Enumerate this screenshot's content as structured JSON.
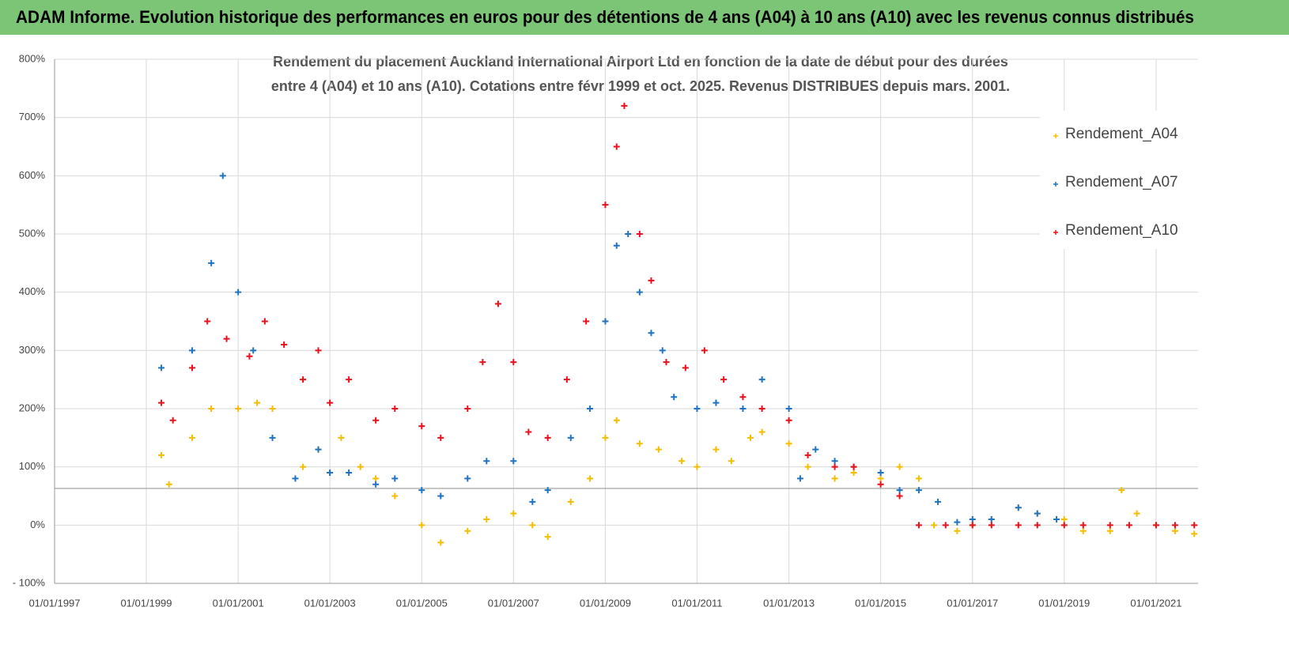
{
  "chart_data": {
    "type": "scatter",
    "title": "ADAM Informe. Evolution historique des performances en euros pour des détentions de 4 ans (A04) à 10 ans (A10) avec les revenus connus distribués",
    "subtitle": [
      "Rendement du placement Auckland International Airport Ltd en fonction de la date de début pour des durées",
      "entre 4 (A04) et 10 ans (A10).  Cotations entre févr 1999 et oct. 2025. Revenus DISTRIBUES depuis mars. 2001."
    ],
    "xlim": [
      "1997-01-01",
      "2021-12-01"
    ],
    "xticks": [
      {
        "value": "1997-01-01",
        "label": "01/01/1997"
      },
      {
        "value": "1999-01-01",
        "label": "01/01/1999"
      },
      {
        "value": "2001-01-01",
        "label": "01/01/2001"
      },
      {
        "value": "2003-01-01",
        "label": "01/01/2003"
      },
      {
        "value": "2005-01-01",
        "label": "01/01/2005"
      },
      {
        "value": "2007-01-01",
        "label": "01/01/2007"
      },
      {
        "value": "2009-01-01",
        "label": "01/01/2009"
      },
      {
        "value": "2011-01-01",
        "label": "01/01/2011"
      },
      {
        "value": "2013-01-01",
        "label": "01/01/2013"
      },
      {
        "value": "2015-01-01",
        "label": "01/01/2015"
      },
      {
        "value": "2017-01-01",
        "label": "01/01/2017"
      },
      {
        "value": "2019-01-01",
        "label": "01/01/2019"
      },
      {
        "value": "2021-01-01",
        "label": "01/01/2021"
      }
    ],
    "ylim": [
      -100,
      800
    ],
    "yticks": [
      {
        "value": -100,
        "label": "- 100%"
      },
      {
        "value": 0,
        "label": "0%"
      },
      {
        "value": 100,
        "label": "100%"
      },
      {
        "value": 200,
        "label": "200%"
      },
      {
        "value": 300,
        "label": "300%"
      },
      {
        "value": 400,
        "label": "400%"
      },
      {
        "value": 500,
        "label": "500%"
      },
      {
        "value": 600,
        "label": "600%"
      },
      {
        "value": 700,
        "label": "700%"
      },
      {
        "value": 800,
        "label": "800%"
      }
    ],
    "reference_line": 63,
    "grid": true,
    "legend": "upper right",
    "series": [
      {
        "name": "Rendement_A04",
        "color": "#f5bd00",
        "x": [
          "1999-05-01",
          "1999-07-01",
          "2000-01-01",
          "2000-06-01",
          "2001-01-01",
          "2001-06-01",
          "2001-10-01",
          "2002-06-01",
          "2002-10-01",
          "2003-01-01",
          "2003-04-01",
          "2003-09-01",
          "2004-01-01",
          "2004-06-01",
          "2005-01-01",
          "2005-06-01",
          "2006-01-01",
          "2006-06-01",
          "2007-01-01",
          "2007-06-01",
          "2007-10-01",
          "2008-04-01",
          "2008-09-01",
          "2009-01-01",
          "2009-04-01",
          "2009-10-01",
          "2010-03-01",
          "2010-09-01",
          "2011-01-01",
          "2011-06-01",
          "2011-10-01",
          "2012-03-01",
          "2012-06-01",
          "2013-01-01",
          "2013-06-01",
          "2014-01-01",
          "2014-06-01",
          "2015-01-01",
          "2015-06-01",
          "2015-11-01",
          "2016-03-01",
          "2016-09-01",
          "2017-01-01",
          "2017-06-01",
          "2018-01-01",
          "2018-06-01",
          "2019-01-01",
          "2019-06-01",
          "2020-01-01",
          "2020-04-01",
          "2020-08-01",
          "2021-01-01",
          "2021-06-01",
          "2021-11-01"
        ],
        "values": [
          120,
          70,
          150,
          200,
          200,
          210,
          200,
          100,
          130,
          90,
          150,
          100,
          80,
          50,
          0,
          -30,
          -10,
          10,
          20,
          0,
          -20,
          40,
          80,
          150,
          180,
          140,
          130,
          110,
          100,
          130,
          110,
          150,
          160,
          140,
          100,
          80,
          90,
          80,
          100,
          80,
          0,
          -10,
          0,
          10,
          30,
          20,
          10,
          -10,
          -10,
          60,
          20,
          0,
          -10,
          -15
        ]
      },
      {
        "name": "Rendement_A07",
        "color": "#1f73c1",
        "x": [
          "1999-05-01",
          "2000-01-01",
          "2000-06-01",
          "2000-09-01",
          "2001-01-01",
          "2001-05-01",
          "2001-10-01",
          "2002-04-01",
          "2002-10-01",
          "2003-01-01",
          "2003-06-01",
          "2004-01-01",
          "2004-06-01",
          "2005-01-01",
          "2005-06-01",
          "2006-01-01",
          "2006-06-01",
          "2007-01-01",
          "2007-06-01",
          "2007-10-01",
          "2008-04-01",
          "2008-09-01",
          "2009-01-01",
          "2009-04-01",
          "2009-07-01",
          "2009-10-01",
          "2010-01-01",
          "2010-04-01",
          "2010-07-01",
          "2011-01-01",
          "2011-06-01",
          "2012-01-01",
          "2012-06-01",
          "2013-01-01",
          "2013-04-01",
          "2013-08-01",
          "2014-01-01",
          "2014-06-01",
          "2015-01-01",
          "2015-06-01",
          "2015-11-01",
          "2016-04-01",
          "2016-09-01",
          "2017-01-01",
          "2017-06-01",
          "2018-01-01",
          "2018-06-01",
          "2018-11-01"
        ],
        "values": [
          270,
          300,
          450,
          600,
          400,
          300,
          150,
          80,
          130,
          90,
          90,
          70,
          80,
          60,
          50,
          80,
          110,
          110,
          40,
          60,
          150,
          200,
          350,
          480,
          500,
          400,
          330,
          300,
          220,
          200,
          210,
          200,
          250,
          200,
          80,
          130,
          110,
          100,
          90,
          60,
          60,
          40,
          5,
          10,
          10,
          30,
          20,
          10
        ]
      },
      {
        "name": "Rendement_A10",
        "color": "#e8101a",
        "x": [
          "1999-05-01",
          "1999-08-01",
          "2000-01-01",
          "2000-05-01",
          "2000-10-01",
          "2001-04-01",
          "2001-08-01",
          "2002-01-01",
          "2002-06-01",
          "2002-10-01",
          "2003-01-01",
          "2003-06-01",
          "2004-01-01",
          "2004-06-01",
          "2005-01-01",
          "2005-06-01",
          "2006-01-01",
          "2006-05-01",
          "2006-09-01",
          "2007-01-01",
          "2007-05-01",
          "2007-10-01",
          "2008-03-01",
          "2008-08-01",
          "2009-01-01",
          "2009-04-01",
          "2009-06-01",
          "2009-10-01",
          "2010-01-01",
          "2010-05-01",
          "2010-10-01",
          "2011-03-01",
          "2011-08-01",
          "2012-01-01",
          "2012-06-01",
          "2013-01-01",
          "2013-06-01",
          "2014-01-01",
          "2014-06-01",
          "2015-01-01",
          "2015-06-01",
          "2015-11-01",
          "2016-06-01",
          "2017-01-01",
          "2017-06-01",
          "2018-01-01",
          "2018-06-01",
          "2019-01-01",
          "2019-06-01",
          "2020-01-01",
          "2020-06-01",
          "2021-01-01",
          "2021-06-01",
          "2021-11-01"
        ],
        "values": [
          210,
          180,
          270,
          350,
          320,
          290,
          350,
          310,
          250,
          300,
          210,
          250,
          180,
          200,
          170,
          150,
          200,
          280,
          380,
          280,
          160,
          150,
          250,
          350,
          550,
          650,
          720,
          500,
          420,
          280,
          270,
          300,
          250,
          220,
          200,
          180,
          120,
          100,
          100,
          70,
          50,
          0,
          0,
          0,
          0,
          0,
          0,
          0,
          0,
          0,
          0,
          0,
          0,
          0
        ]
      }
    ]
  }
}
